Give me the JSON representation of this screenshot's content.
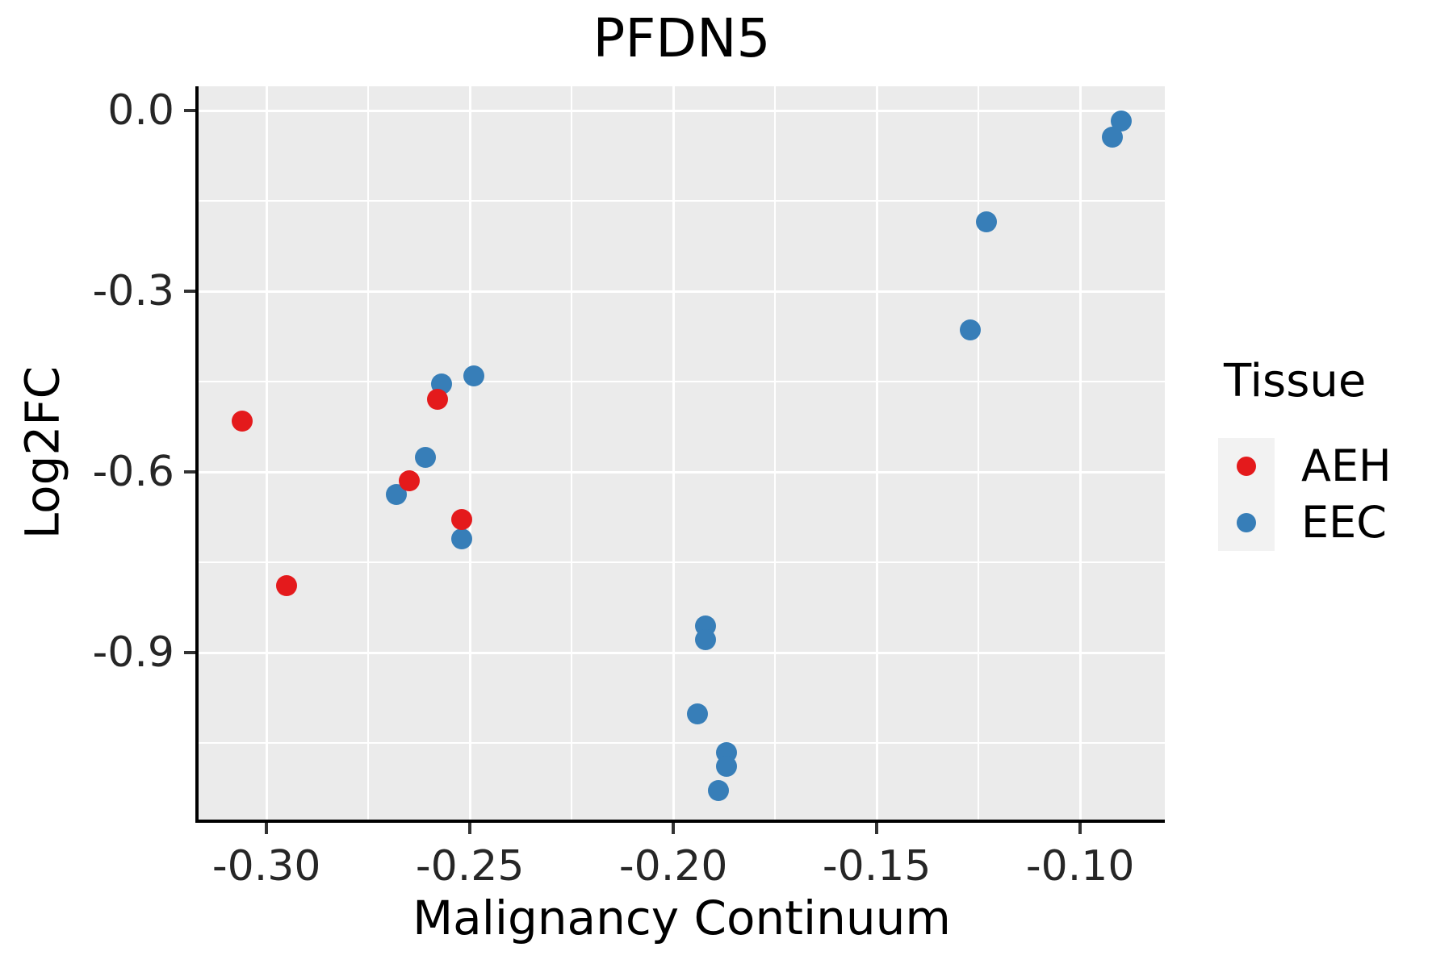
{
  "title": "PFDN5",
  "chart_data": {
    "type": "scatter",
    "title": "PFDN5",
    "xlabel": "Malignancy Continuum",
    "ylabel": "Log2FC",
    "xlim": [
      -0.3167,
      -0.0792
    ],
    "ylim": [
      -1.177,
      0.0402
    ],
    "grid": true,
    "panel_background": "#EBEBEB",
    "gridline_color": "#FFFFFF",
    "x_major_ticks": {
      "values": [
        -0.3,
        -0.25,
        -0.2,
        -0.15,
        -0.1
      ],
      "labels": [
        "-0.30",
        "-0.25",
        "-0.20",
        "-0.15",
        "-0.10"
      ]
    },
    "x_minor_ticks": [
      -0.275,
      -0.225,
      -0.175,
      -0.125
    ],
    "y_major_ticks": {
      "values": [
        0.0,
        -0.3,
        -0.6,
        -0.9
      ],
      "labels": [
        "0.0",
        "-0.3",
        "-0.6",
        "-0.9"
      ]
    },
    "y_minor_ticks": [
      -0.15,
      -0.45,
      -0.75,
      -1.05
    ],
    "legend_position": "right",
    "legend_title": "Tissue",
    "series": [
      {
        "name": "EEC",
        "color": "#377EB8",
        "points": [
          [
            -0.257,
            -0.454
          ],
          [
            -0.249,
            -0.441
          ],
          [
            -0.261,
            -0.576
          ],
          [
            -0.268,
            -0.638
          ],
          [
            -0.252,
            -0.711
          ],
          [
            -0.127,
            -0.364
          ],
          [
            -0.123,
            -0.185
          ],
          [
            -0.092,
            -0.044
          ],
          [
            -0.09,
            -0.017
          ],
          [
            -0.192,
            -0.856
          ],
          [
            -0.192,
            -0.878
          ],
          [
            -0.194,
            -1.002
          ],
          [
            -0.187,
            -1.066
          ],
          [
            -0.187,
            -1.088
          ],
          [
            -0.189,
            -1.129
          ]
        ]
      },
      {
        "name": "AEH",
        "color": "#E41A1C",
        "points": [
          [
            -0.306,
            -0.516
          ],
          [
            -0.295,
            -0.789
          ],
          [
            -0.258,
            -0.48
          ],
          [
            -0.265,
            -0.615
          ],
          [
            -0.252,
            -0.679
          ]
        ]
      }
    ]
  },
  "legend": {
    "title": "Tissue",
    "entries": [
      {
        "label": "AEH",
        "color": "#E41A1C"
      },
      {
        "label": "EEC",
        "color": "#377EB8"
      }
    ]
  },
  "colors": {
    "panel_bg": "#EBEBEB",
    "grid": "#FFFFFF",
    "spine": "#000000",
    "tick": "#333333",
    "legend_key_bg": "#F2F2F2"
  }
}
